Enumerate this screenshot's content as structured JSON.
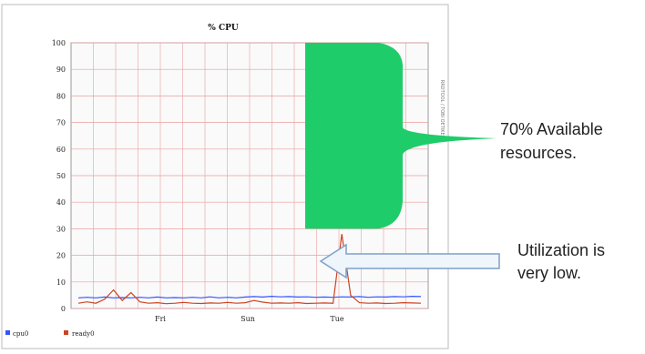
{
  "chart_data": {
    "type": "line",
    "title": "% CPU",
    "ylim": [
      0,
      100
    ],
    "y_ticks": [
      "0",
      "10",
      "20",
      "30",
      "40",
      "50",
      "60",
      "70",
      "80",
      "90",
      "100"
    ],
    "x_ticks": [
      "Fri",
      "Sun",
      "Tue"
    ],
    "grid": true,
    "legend": {
      "placement": "bottom-left",
      "entries": [
        {
          "name": "cpu0",
          "color": "#3355ff"
        },
        {
          "name": "ready0",
          "color": "#cc4422"
        }
      ]
    },
    "side_label": "RRDTOOL / TOBI OETIKER",
    "series": [
      {
        "name": "cpu0",
        "color": "#3355ff",
        "values": [
          4,
          4.2,
          4,
          4.3,
          4,
          4.1,
          4,
          4.2,
          4,
          4.3,
          4,
          4.1,
          4,
          4.2,
          4,
          4.4,
          4,
          4.2,
          4,
          4.3,
          4.5,
          4.3,
          4.6,
          4.4,
          4.5,
          4.3,
          4.4,
          4.2,
          4.3,
          4.2,
          4.4,
          4.3,
          4.5,
          4.2,
          4.4,
          4.3,
          4.5,
          4.4,
          4.6,
          4.5
        ]
      },
      {
        "name": "ready0",
        "color": "#cc4422",
        "values": [
          2,
          2.5,
          2,
          3.5,
          7,
          3,
          6,
          2.5,
          2,
          2.2,
          1.8,
          2,
          2.3,
          2,
          1.9,
          2.1,
          2,
          2.3,
          2,
          2.2,
          3,
          2.4,
          2,
          2.1,
          2,
          2.2,
          1.9,
          2,
          2.1,
          2,
          28,
          5,
          2.2,
          2,
          2.1,
          1.9,
          2,
          2.2,
          2.1,
          2
        ]
      }
    ],
    "annotations": [
      {
        "text_lines": [
          "70% Available",
          "resources."
        ],
        "y_range": [
          30,
          100
        ],
        "color": "#1fcc6a"
      },
      {
        "text_lines": [
          "Utilization is",
          "very low."
        ],
        "points_to": 28,
        "color": "#7fa0c8"
      }
    ]
  },
  "colors": {
    "grid": "#e8a0a0",
    "frame": "#aaaaaa",
    "available_fill": "#1fcc6a",
    "arrow_stroke": "#7fa0c8",
    "arrow_fill": "#eef5fb"
  }
}
